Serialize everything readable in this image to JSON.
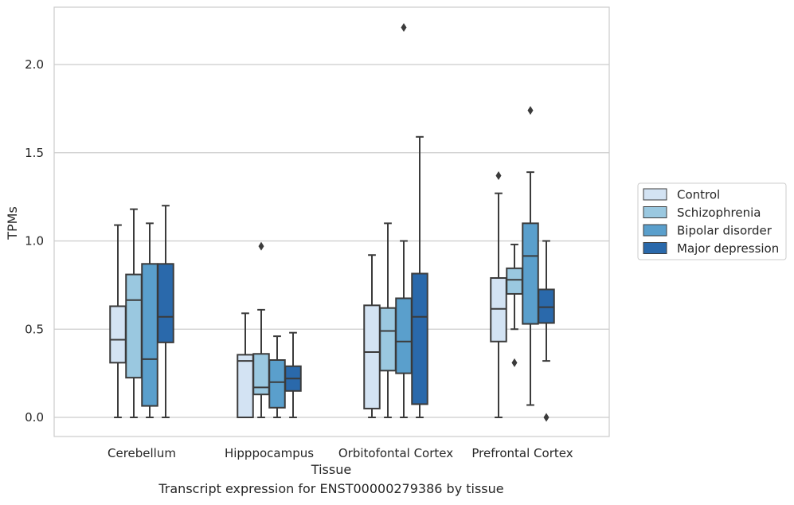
{
  "chart_data": {
    "type": "box",
    "xlabel": "Tissue",
    "ylabel": "TPMs",
    "ylim": [
      -0.11,
      2.33
    ],
    "yticks": [
      0.0,
      0.5,
      1.0,
      1.5,
      2.0
    ],
    "ytick_labels": [
      "0.0",
      "0.5",
      "1.0",
      "1.5",
      "2.0"
    ],
    "grid": "horizontal",
    "legend_position": "outside-right",
    "categories": [
      "Cerebellum",
      "Hipppocampus",
      "Orbitofontal Cortex",
      "Prefrontal Cortex"
    ],
    "series": [
      {
        "name": "Control",
        "color": "#d3e3f3",
        "boxes": [
          {
            "whislo": 0.0,
            "q1": 0.31,
            "median": 0.44,
            "q3": 0.63,
            "whishi": 1.09,
            "fliers": []
          },
          {
            "whislo": 0.0,
            "q1": 0.0,
            "median": 0.32,
            "q3": 0.355,
            "whishi": 0.59,
            "fliers": []
          },
          {
            "whislo": 0.0,
            "q1": 0.05,
            "median": 0.37,
            "q3": 0.635,
            "whishi": 0.92,
            "fliers": []
          },
          {
            "whislo": 0.0,
            "q1": 0.43,
            "median": 0.615,
            "q3": 0.79,
            "whishi": 1.27,
            "fliers": [
              1.37
            ]
          }
        ]
      },
      {
        "name": "Schizophrenia",
        "color": "#9ac8e0",
        "boxes": [
          {
            "whislo": 0.0,
            "q1": 0.225,
            "median": 0.665,
            "q3": 0.81,
            "whishi": 1.18,
            "fliers": []
          },
          {
            "whislo": 0.0,
            "q1": 0.13,
            "median": 0.17,
            "q3": 0.36,
            "whishi": 0.61,
            "fliers": [
              0.97
            ]
          },
          {
            "whislo": 0.0,
            "q1": 0.265,
            "median": 0.49,
            "q3": 0.62,
            "whishi": 1.1,
            "fliers": []
          },
          {
            "whislo": 0.5,
            "q1": 0.7,
            "median": 0.78,
            "q3": 0.845,
            "whishi": 0.98,
            "fliers": [
              0.31
            ]
          }
        ]
      },
      {
        "name": "Bipolar disorder",
        "color": "#5a9fcc",
        "boxes": [
          {
            "whislo": 0.0,
            "q1": 0.065,
            "median": 0.33,
            "q3": 0.87,
            "whishi": 1.1,
            "fliers": []
          },
          {
            "whislo": 0.0,
            "q1": 0.055,
            "median": 0.2,
            "q3": 0.325,
            "whishi": 0.46,
            "fliers": []
          },
          {
            "whislo": 0.0,
            "q1": 0.25,
            "median": 0.43,
            "q3": 0.675,
            "whishi": 1.0,
            "fliers": [
              2.21
            ]
          },
          {
            "whislo": 0.07,
            "q1": 0.53,
            "median": 0.915,
            "q3": 1.1,
            "whishi": 1.39,
            "fliers": [
              1.74
            ]
          }
        ]
      },
      {
        "name": "Major depression",
        "color": "#2a69ab",
        "boxes": [
          {
            "whislo": 0.0,
            "q1": 0.425,
            "median": 0.57,
            "q3": 0.87,
            "whishi": 1.2,
            "fliers": []
          },
          {
            "whislo": 0.0,
            "q1": 0.15,
            "median": 0.22,
            "q3": 0.29,
            "whishi": 0.48,
            "fliers": []
          },
          {
            "whislo": 0.0,
            "q1": 0.075,
            "median": 0.57,
            "q3": 0.815,
            "whishi": 1.59,
            "fliers": []
          },
          {
            "whislo": 0.32,
            "q1": 0.535,
            "median": 0.625,
            "q3": 0.725,
            "whishi": 1.0,
            "fliers": [
              0.0
            ]
          }
        ]
      }
    ]
  },
  "caption": "Transcript expression for ENST00000279386 by tissue"
}
